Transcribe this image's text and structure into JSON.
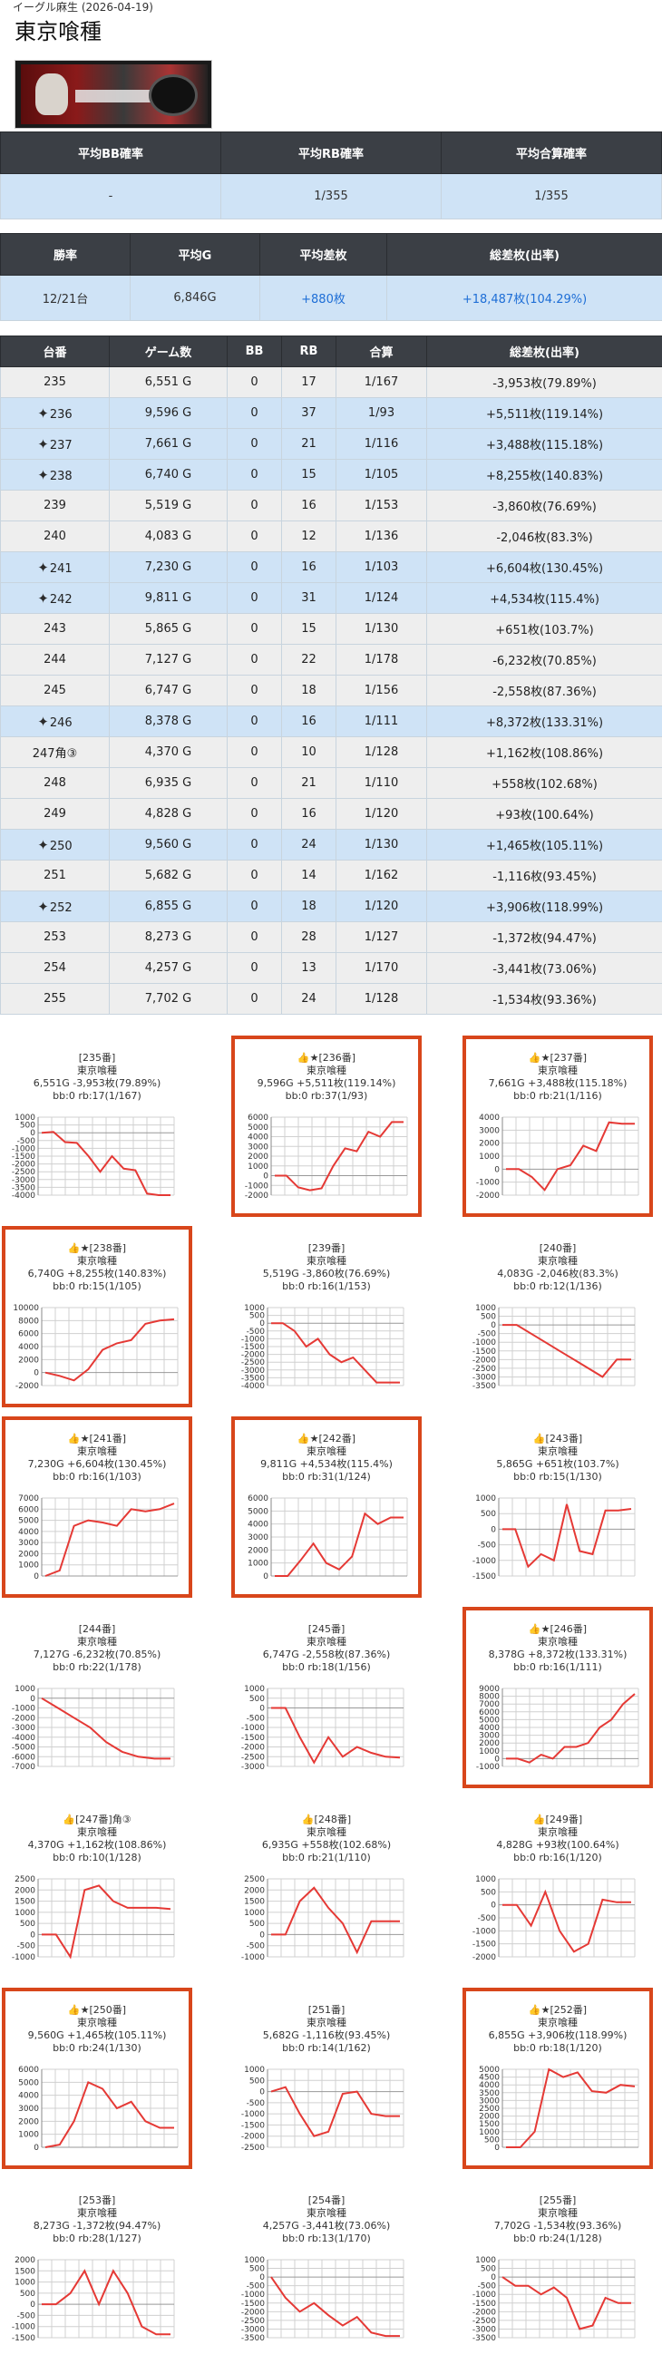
{
  "store": "イーグル麻生",
  "date_text": "(2026-04-19)",
  "title": "東京喰種",
  "summary1": {
    "headers": [
      "平均BB確率",
      "平均RB確率",
      "平均合算確率"
    ],
    "values": [
      "-",
      "1/355",
      "1/355"
    ]
  },
  "summary2": {
    "headers": [
      "勝率",
      "平均G",
      "平均差枚",
      "総差枚(出率)"
    ],
    "values": [
      "12/21台",
      "6,846G",
      "+880枚",
      "+18,487枚(104.29%)"
    ]
  },
  "machines_table": {
    "headers": [
      "台番",
      "ゲーム数",
      "BB",
      "RB",
      "合算",
      "総差枚(出率)"
    ],
    "rows": [
      {
        "no": "235",
        "games": "6,551 G",
        "bb": "0",
        "rb": "17",
        "total": "1/167",
        "diff": "-3,953枚(79.89%)",
        "win": false
      },
      {
        "no": "236",
        "games": "9,596 G",
        "bb": "0",
        "rb": "37",
        "total": "1/93",
        "diff": "+5,511枚(119.14%)",
        "win": true
      },
      {
        "no": "237",
        "games": "7,661 G",
        "bb": "0",
        "rb": "21",
        "total": "1/116",
        "diff": "+3,488枚(115.18%)",
        "win": true
      },
      {
        "no": "238",
        "games": "6,740 G",
        "bb": "0",
        "rb": "15",
        "total": "1/105",
        "diff": "+8,255枚(140.83%)",
        "win": true
      },
      {
        "no": "239",
        "games": "5,519 G",
        "bb": "0",
        "rb": "16",
        "total": "1/153",
        "diff": "-3,860枚(76.69%)",
        "win": false
      },
      {
        "no": "240",
        "games": "4,083 G",
        "bb": "0",
        "rb": "12",
        "total": "1/136",
        "diff": "-2,046枚(83.3%)",
        "win": false
      },
      {
        "no": "241",
        "games": "7,230 G",
        "bb": "0",
        "rb": "16",
        "total": "1/103",
        "diff": "+6,604枚(130.45%)",
        "win": true
      },
      {
        "no": "242",
        "games": "9,811 G",
        "bb": "0",
        "rb": "31",
        "total": "1/124",
        "diff": "+4,534枚(115.4%)",
        "win": true
      },
      {
        "no": "243",
        "games": "5,865 G",
        "bb": "0",
        "rb": "15",
        "total": "1/130",
        "diff": "+651枚(103.7%)",
        "win": false
      },
      {
        "no": "244",
        "games": "7,127 G",
        "bb": "0",
        "rb": "22",
        "total": "1/178",
        "diff": "-6,232枚(70.85%)",
        "win": false
      },
      {
        "no": "245",
        "games": "6,747 G",
        "bb": "0",
        "rb": "18",
        "total": "1/156",
        "diff": "-2,558枚(87.36%)",
        "win": false
      },
      {
        "no": "246",
        "games": "8,378 G",
        "bb": "0",
        "rb": "16",
        "total": "1/111",
        "diff": "+8,372枚(133.31%)",
        "win": true
      },
      {
        "no": "247角③",
        "games": "4,370 G",
        "bb": "0",
        "rb": "10",
        "total": "1/128",
        "diff": "+1,162枚(108.86%)",
        "win": false
      },
      {
        "no": "248",
        "games": "6,935 G",
        "bb": "0",
        "rb": "21",
        "total": "1/110",
        "diff": "+558枚(102.68%)",
        "win": false
      },
      {
        "no": "249",
        "games": "4,828 G",
        "bb": "0",
        "rb": "16",
        "total": "1/120",
        "diff": "+93枚(100.64%)",
        "win": false
      },
      {
        "no": "250",
        "games": "9,560 G",
        "bb": "0",
        "rb": "24",
        "total": "1/130",
        "diff": "+1,465枚(105.11%)",
        "win": true
      },
      {
        "no": "251",
        "games": "5,682 G",
        "bb": "0",
        "rb": "14",
        "total": "1/162",
        "diff": "-1,116枚(93.45%)",
        "win": false
      },
      {
        "no": "252",
        "games": "6,855 G",
        "bb": "0",
        "rb": "18",
        "total": "1/120",
        "diff": "+3,906枚(118.99%)",
        "win": true
      },
      {
        "no": "253",
        "games": "8,273 G",
        "bb": "0",
        "rb": "28",
        "total": "1/127",
        "diff": "-1,372枚(94.47%)",
        "win": false
      },
      {
        "no": "254",
        "games": "4,257 G",
        "bb": "0",
        "rb": "13",
        "total": "1/170",
        "diff": "-3,441枚(73.06%)",
        "win": false
      },
      {
        "no": "255",
        "games": "7,702 G",
        "bb": "0",
        "rb": "24",
        "total": "1/128",
        "diff": "-1,534枚(93.36%)",
        "win": false
      }
    ]
  },
  "charts": [
    {
      "label": "[235番]",
      "name": "東京喰種",
      "stats": "6,551G -3,953枚(79.89%)",
      "bbrb": "bb:0 rb:17(1/167)",
      "hl": false,
      "ticks": [
        "1000",
        "500",
        "0",
        "-500",
        "-1000",
        "-1500",
        "-2000",
        "-2500",
        "-3000",
        "-3500",
        "-4000"
      ],
      "ylim": [
        -4000,
        1000
      ],
      "values": [
        0,
        50,
        -600,
        -650,
        -1500,
        -2500,
        -1500,
        -2300,
        -2400,
        -3900,
        -4000,
        -4000
      ]
    },
    {
      "label": "👍★[236番]",
      "name": "東京喰種",
      "stats": "9,596G +5,511枚(119.14%)",
      "bbrb": "bb:0 rb:37(1/93)",
      "hl": true,
      "ticks": [
        "6000",
        "5000",
        "4000",
        "3000",
        "2000",
        "1000",
        "0",
        "-1000",
        "-2000"
      ],
      "ylim": [
        -2000,
        6000
      ],
      "values": [
        0,
        0,
        -1200,
        -1500,
        -1300,
        1000,
        2800,
        2500,
        4500,
        4000,
        5500,
        5500
      ]
    },
    {
      "label": "👍★[237番]",
      "name": "東京喰種",
      "stats": "7,661G +3,488枚(115.18%)",
      "bbrb": "bb:0 rb:21(1/116)",
      "hl": true,
      "ticks": [
        "4000",
        "3000",
        "2000",
        "1000",
        "0",
        "-1000",
        "-2000"
      ],
      "ylim": [
        -2000,
        4000
      ],
      "values": [
        0,
        0,
        -600,
        -1600,
        0,
        300,
        1800,
        1400,
        3600,
        3500,
        3500
      ]
    },
    {
      "label": "👍★[238番]",
      "name": "東京喰種",
      "stats": "6,740G +8,255枚(140.83%)",
      "bbrb": "bb:0 rb:15(1/105)",
      "hl": true,
      "ticks": [
        "10000",
        "8000",
        "6000",
        "4000",
        "2000",
        "0",
        "-2000"
      ],
      "ylim": [
        -2000,
        10000
      ],
      "values": [
        0,
        -500,
        -1200,
        500,
        3500,
        4500,
        5000,
        7500,
        8000,
        8200
      ]
    },
    {
      "label": "[239番]",
      "name": "東京喰種",
      "stats": "5,519G -3,860枚(76.69%)",
      "bbrb": "bb:0 rb:16(1/153)",
      "hl": false,
      "ticks": [
        "1000",
        "500",
        "0",
        "-500",
        "-1000",
        "-1500",
        "-2000",
        "-2500",
        "-3000",
        "-3500",
        "-4000"
      ],
      "ylim": [
        -4000,
        1000
      ],
      "values": [
        0,
        0,
        -500,
        -1500,
        -1000,
        -2000,
        -2500,
        -2200,
        -3000,
        -3800,
        -3800,
        -3800
      ]
    },
    {
      "label": "[240番]",
      "name": "東京喰種",
      "stats": "4,083G -2,046枚(83.3%)",
      "bbrb": "bb:0 rb:12(1/136)",
      "hl": false,
      "ticks": [
        "1000",
        "500",
        "0",
        "-500",
        "-1000",
        "-1500",
        "-2000",
        "-2500",
        "-3000",
        "-3500"
      ],
      "ylim": [
        -3500,
        1000
      ],
      "values": [
        0,
        0,
        -500,
        -1000,
        -1500,
        -2000,
        -2500,
        -3000,
        -2000,
        -2000
      ]
    },
    {
      "label": "👍★[241番]",
      "name": "東京喰種",
      "stats": "7,230G +6,604枚(130.45%)",
      "bbrb": "bb:0 rb:16(1/103)",
      "hl": true,
      "ticks": [
        "7000",
        "6000",
        "5000",
        "4000",
        "3000",
        "2000",
        "1000",
        "0"
      ],
      "ylim": [
        0,
        7000
      ],
      "values": [
        0,
        500,
        4500,
        5000,
        4800,
        4500,
        6000,
        5800,
        6000,
        6500
      ]
    },
    {
      "label": "👍★[242番]",
      "name": "東京喰種",
      "stats": "9,811G +4,534枚(115.4%)",
      "bbrb": "bb:0 rb:31(1/124)",
      "hl": true,
      "ticks": [
        "6000",
        "5000",
        "4000",
        "3000",
        "2000",
        "1000",
        "0"
      ],
      "ylim": [
        0,
        6000
      ],
      "values": [
        0,
        0,
        1200,
        2500,
        1000,
        500,
        1500,
        4800,
        4000,
        4500,
        4500
      ]
    },
    {
      "label": "👍[243番]",
      "name": "東京喰種",
      "stats": "5,865G +651枚(103.7%)",
      "bbrb": "bb:0 rb:15(1/130)",
      "hl": false,
      "ticks": [
        "1000",
        "500",
        "0",
        "-500",
        "-1000",
        "-1500"
      ],
      "ylim": [
        -1500,
        1000
      ],
      "values": [
        0,
        0,
        -1200,
        -800,
        -1000,
        800,
        -700,
        -800,
        600,
        600,
        650
      ]
    },
    {
      "label": "[244番]",
      "name": "東京喰種",
      "stats": "7,127G -6,232枚(70.85%)",
      "bbrb": "bb:0 rb:22(1/178)",
      "hl": false,
      "ticks": [
        "1000",
        "0",
        "-1000",
        "-2000",
        "-3000",
        "-4000",
        "-5000",
        "-6000",
        "-7000"
      ],
      "ylim": [
        -7000,
        1000
      ],
      "values": [
        0,
        -1000,
        -2000,
        -3000,
        -4500,
        -5500,
        -6000,
        -6200,
        -6200
      ]
    },
    {
      "label": "[245番]",
      "name": "東京喰種",
      "stats": "6,747G -2,558枚(87.36%)",
      "bbrb": "bb:0 rb:18(1/156)",
      "hl": false,
      "ticks": [
        "1000",
        "500",
        "0",
        "-500",
        "-1000",
        "-1500",
        "-2000",
        "-2500",
        "-3000"
      ],
      "ylim": [
        -3000,
        1000
      ],
      "values": [
        0,
        0,
        -1500,
        -2800,
        -1500,
        -2500,
        -2000,
        -2300,
        -2500,
        -2550
      ]
    },
    {
      "label": "👍★[246番]",
      "name": "東京喰種",
      "stats": "8,378G +8,372枚(133.31%)",
      "bbrb": "bb:0 rb:16(1/111)",
      "hl": true,
      "ticks": [
        "9000",
        "8000",
        "7000",
        "6000",
        "5000",
        "4000",
        "3000",
        "2000",
        "1000",
        "0",
        "-1000"
      ],
      "ylim": [
        -1000,
        9000
      ],
      "values": [
        0,
        0,
        -500,
        500,
        0,
        1500,
        1500,
        2000,
        4000,
        5000,
        7000,
        8300
      ]
    },
    {
      "label": "👍[247番]角③",
      "name": "東京喰種",
      "stats": "4,370G +1,162枚(108.86%)",
      "bbrb": "bb:0 rb:10(1/128)",
      "hl": false,
      "ticks": [
        "2500",
        "2000",
        "1500",
        "1000",
        "500",
        "0",
        "-500",
        "-1000"
      ],
      "ylim": [
        -1000,
        2500
      ],
      "values": [
        0,
        0,
        -1000,
        2000,
        2200,
        1500,
        1200,
        1200,
        1200,
        1150
      ]
    },
    {
      "label": "👍[248番]",
      "name": "東京喰種",
      "stats": "6,935G +558枚(102.68%)",
      "bbrb": "bb:0 rb:21(1/110)",
      "hl": false,
      "ticks": [
        "2500",
        "2000",
        "1500",
        "1000",
        "500",
        "0",
        "-500",
        "-1000"
      ],
      "ylim": [
        -1000,
        2500
      ],
      "values": [
        0,
        0,
        1500,
        2100,
        1200,
        500,
        -800,
        600,
        600,
        600
      ]
    },
    {
      "label": "👍[249番]",
      "name": "東京喰種",
      "stats": "4,828G +93枚(100.64%)",
      "bbrb": "bb:0 rb:16(1/120)",
      "hl": false,
      "ticks": [
        "1000",
        "500",
        "0",
        "-500",
        "-1000",
        "-1500",
        "-2000"
      ],
      "ylim": [
        -2000,
        1000
      ],
      "values": [
        0,
        0,
        -800,
        500,
        -1000,
        -1800,
        -1500,
        200,
        100,
        100
      ]
    },
    {
      "label": "👍★[250番]",
      "name": "東京喰種",
      "stats": "9,560G +1,465枚(105.11%)",
      "bbrb": "bb:0 rb:24(1/130)",
      "hl": true,
      "ticks": [
        "6000",
        "5000",
        "4000",
        "3000",
        "2000",
        "1000",
        "0"
      ],
      "ylim": [
        0,
        6000
      ],
      "values": [
        0,
        200,
        2000,
        5000,
        4500,
        3000,
        3500,
        2000,
        1500,
        1500
      ]
    },
    {
      "label": "[251番]",
      "name": "東京喰種",
      "stats": "5,682G -1,116枚(93.45%)",
      "bbrb": "bb:0 rb:14(1/162)",
      "hl": false,
      "ticks": [
        "1000",
        "500",
        "0",
        "-500",
        "-1000",
        "-1500",
        "-2000",
        "-2500"
      ],
      "ylim": [
        -2500,
        1000
      ],
      "values": [
        0,
        200,
        -1000,
        -2000,
        -1800,
        -100,
        0,
        -1000,
        -1100,
        -1100
      ]
    },
    {
      "label": "👍★[252番]",
      "name": "東京喰種",
      "stats": "6,855G +3,906枚(118.99%)",
      "bbrb": "bb:0 rb:18(1/120)",
      "hl": true,
      "ticks": [
        "5000",
        "4500",
        "4000",
        "3500",
        "3000",
        "2500",
        "2000",
        "1500",
        "1000",
        "500",
        "0"
      ],
      "ylim": [
        0,
        5000
      ],
      "values": [
        0,
        0,
        1000,
        5000,
        4500,
        4800,
        3600,
        3500,
        4000,
        3900
      ]
    },
    {
      "label": "[253番]",
      "name": "東京喰種",
      "stats": "8,273G -1,372枚(94.47%)",
      "bbrb": "bb:0 rb:28(1/127)",
      "hl": false,
      "ticks": [
        "2000",
        "1500",
        "1000",
        "500",
        "0",
        "-500",
        "-1000",
        "-1500"
      ],
      "ylim": [
        -1500,
        2000
      ],
      "values": [
        0,
        0,
        500,
        1500,
        0,
        1500,
        500,
        -1000,
        -1350,
        -1350
      ]
    },
    {
      "label": "[254番]",
      "name": "東京喰種",
      "stats": "4,257G -3,441枚(73.06%)",
      "bbrb": "bb:0 rb:13(1/170)",
      "hl": false,
      "ticks": [
        "1000",
        "500",
        "0",
        "-500",
        "-1000",
        "-1500",
        "-2000",
        "-2500",
        "-3000",
        "-3500"
      ],
      "ylim": [
        -3500,
        1000
      ],
      "values": [
        0,
        -1200,
        -2000,
        -1500,
        -2200,
        -2800,
        -2300,
        -3200,
        -3400,
        -3400
      ]
    },
    {
      "label": "[255番]",
      "name": "東京喰種",
      "stats": "7,702G -1,534枚(93.36%)",
      "bbrb": "bb:0 rb:24(1/128)",
      "hl": false,
      "ticks": [
        "1000",
        "500",
        "0",
        "-500",
        "-1000",
        "-1500",
        "-2000",
        "-2500",
        "-3000",
        "-3500"
      ],
      "ylim": [
        -3500,
        1000
      ],
      "values": [
        0,
        -500,
        -500,
        -1000,
        -600,
        -1200,
        -3000,
        -2800,
        -1200,
        -1500,
        -1500
      ]
    }
  ],
  "colors": {
    "header_bg": "#3b3f45",
    "win_row": "#cfe3f6",
    "lose_row": "#eeeeee",
    "highlight_border": "#d8461b",
    "line": "#e53935",
    "positive_text": "#1e6ed6"
  }
}
